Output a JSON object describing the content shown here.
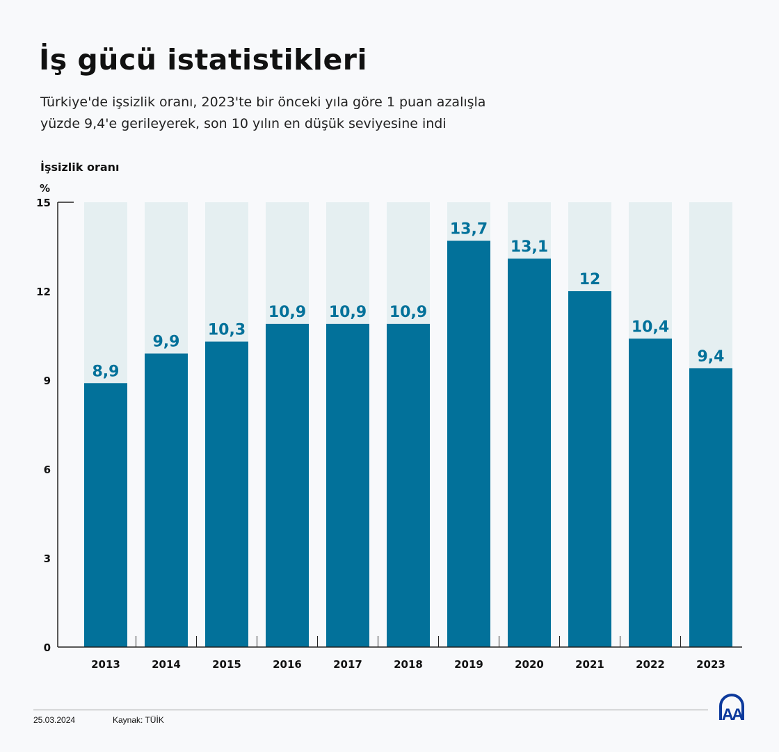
{
  "title": "İş gücü istatistikleri",
  "subtitle_line1": "Türkiye'de işsizlik oranı, 2023'te bir önceki yıla göre 1 puan azalışla",
  "subtitle_line2": "yüzde 9,4'e gerileyerek, son 10 yılın en düşük seviyesine indi",
  "footer": {
    "date": "25.03.2024",
    "source": "Kaynak: TÜİK",
    "logo": "AA"
  },
  "colors": {
    "bar": "#02719a",
    "bar_background": "#e5eff1",
    "label": "#02719a"
  },
  "chart_data": {
    "type": "bar",
    "ylabel": "İşsizlik oranı",
    "unit": "%",
    "ylim": [
      0,
      15
    ],
    "yticks": [
      "0",
      "3",
      "6",
      "9",
      "12",
      "15"
    ],
    "categories": [
      "2013",
      "2014",
      "2015",
      "2016",
      "2017",
      "2018",
      "2019",
      "2020",
      "2021",
      "2022",
      "2023"
    ],
    "values": [
      8.9,
      9.9,
      10.3,
      10.9,
      10.9,
      10.9,
      13.7,
      13.1,
      12,
      10.4,
      9.4
    ],
    "labels": [
      "8,9",
      "9,9",
      "10,3",
      "10,9",
      "10,9",
      "10,9",
      "13,7",
      "13,1",
      "12",
      "10,4",
      "9,4"
    ],
    "grid": false
  }
}
